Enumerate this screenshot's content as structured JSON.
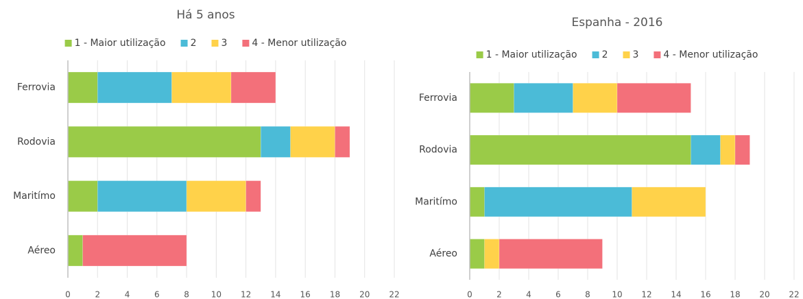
{
  "chart_data": [
    {
      "type": "bar",
      "orientation": "horizontal",
      "stacked": true,
      "title": "Há 5 anos",
      "categories": [
        "Ferrovia",
        "Rodovia",
        "Maritímo",
        "Aéreo"
      ],
      "series": [
        {
          "name": "1 - Maior utilização",
          "color": "#9acb48",
          "values": [
            2,
            13,
            2,
            1
          ]
        },
        {
          "name": "2",
          "color": "#4bbbd7",
          "values": [
            5,
            2,
            6,
            0
          ]
        },
        {
          "name": "3",
          "color": "#ffd24a",
          "values": [
            4,
            3,
            4,
            0
          ]
        },
        {
          "name": "4 - Menor utilização",
          "color": "#f3707a",
          "values": [
            3,
            1,
            1,
            7
          ]
        }
      ],
      "xlim": [
        0,
        22
      ],
      "xticks": [
        0,
        2,
        4,
        6,
        8,
        10,
        12,
        14,
        16,
        18,
        20,
        22
      ],
      "grid": true,
      "legend": "top"
    },
    {
      "type": "bar",
      "orientation": "horizontal",
      "stacked": true,
      "title": "Espanha - 2016",
      "categories": [
        "Ferrovia",
        "Rodovia",
        "Maritímo",
        "Aéreo"
      ],
      "series": [
        {
          "name": "1 - Maior utilização",
          "color": "#9acb48",
          "values": [
            3,
            15,
            1,
            1
          ]
        },
        {
          "name": "2",
          "color": "#4bbbd7",
          "values": [
            4,
            2,
            10,
            0
          ]
        },
        {
          "name": "3",
          "color": "#ffd24a",
          "values": [
            3,
            1,
            5,
            1
          ]
        },
        {
          "name": "4 - Menor utilização",
          "color": "#f3707a",
          "values": [
            5,
            1,
            0,
            7
          ]
        }
      ],
      "xlim": [
        0,
        22
      ],
      "xticks": [
        0,
        2,
        4,
        6,
        8,
        10,
        12,
        14,
        16,
        18,
        20,
        22
      ],
      "grid": true,
      "legend": "top"
    }
  ]
}
